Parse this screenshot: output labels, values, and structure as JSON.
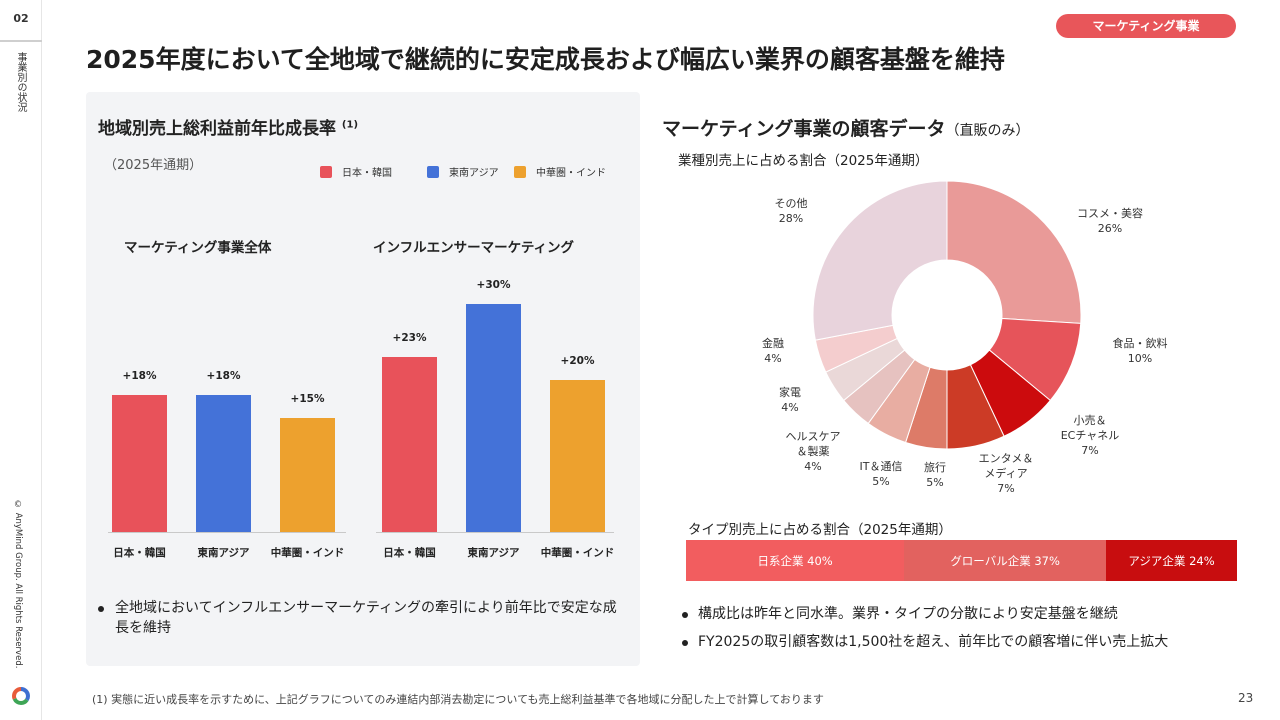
{
  "rail": {
    "section_number": "02",
    "section_label": "事業別の状況",
    "copyright": "© AnyMind Group. All Rights Reserved."
  },
  "tag": "マーケティング事業",
  "title": "2025年度において全地域で継続的に安定成長および幅広い業界の顧客基盤を維持",
  "left_panel": {
    "title": "地域別売上総利益前年比成長率",
    "title_note": "(1)",
    "period": "（2025年通期）",
    "legend": [
      {
        "label": "日本・韓国",
        "color": "#e8525a"
      },
      {
        "label": "東南アジア",
        "color": "#4472d8"
      },
      {
        "label": "中華圏・インド",
        "color": "#eda12e"
      }
    ],
    "bullet": "全地域においてインフルエンサーマーケティングの牽引により前年比で安定な成長を維持"
  },
  "chart_data": [
    {
      "type": "bar",
      "title": "マーケティング事業全体",
      "categories": [
        "日本・韓国",
        "東南アジア",
        "中華圏・インド"
      ],
      "values": [
        18,
        18,
        15
      ],
      "labels": [
        "+18%",
        "+18%",
        "+15%"
      ],
      "colors": [
        "#e8525a",
        "#4472d8",
        "#eda12e"
      ],
      "ylabel": "",
      "xlabel": "",
      "ylim": [
        0,
        33
      ]
    },
    {
      "type": "bar",
      "title": "インフルエンサーマーケティング",
      "categories": [
        "日本・韓国",
        "東南アジア",
        "中華圏・インド"
      ],
      "values": [
        23,
        30,
        20
      ],
      "labels": [
        "+23%",
        "+30%",
        "+20%"
      ],
      "colors": [
        "#e8525a",
        "#4472d8",
        "#eda12e"
      ],
      "ylabel": "",
      "xlabel": "",
      "ylim": [
        0,
        33
      ]
    },
    {
      "type": "pie",
      "title": "業種別売上に占める割合（2025年通期）",
      "categories": [
        "コスメ・美容",
        "食品・飲料",
        "小売＆ECチャネル",
        "エンタメ＆メディア",
        "旅行",
        "IT＆通信",
        "ヘルスケア＆製薬",
        "家電",
        "金融",
        "その他"
      ],
      "values": [
        26,
        10,
        7,
        7,
        5,
        5,
        4,
        4,
        4,
        28
      ],
      "colors": [
        "#e99a98",
        "#e6545a",
        "#cc0b0d",
        "#cc3b26",
        "#dd7b68",
        "#e8ada2",
        "#e6c2c0",
        "#ead8d8",
        "#f4cdce",
        "#e8d3dc"
      ]
    },
    {
      "type": "bar",
      "title": "タイプ別売上に占める割合（2025年通期）",
      "categories": [
        "日系企業",
        "グローバル企業",
        "アジア企業"
      ],
      "values": [
        40,
        37,
        24
      ],
      "colors": [
        "#f25d5f",
        "#e2625f",
        "#c80d0f"
      ]
    }
  ],
  "right": {
    "title": "マーケティング事業の顧客データ",
    "title_note": "（直販のみ）",
    "pie_labels": [
      {
        "line1": "コスメ・美容",
        "line2": "26%"
      },
      {
        "line1": "食品・飲料",
        "line2": "10%"
      },
      {
        "line1": "小売＆",
        "line2": "ECチャネル",
        "line3": "7%"
      },
      {
        "line1": "エンタメ＆",
        "line2": "メディア",
        "line3": "7%"
      },
      {
        "line1": "旅行",
        "line2": "5%"
      },
      {
        "line1": "IT＆通信",
        "line2": "5%"
      },
      {
        "line1": "ヘルスケア",
        "line2": "＆製薬",
        "line3": "4%"
      },
      {
        "line1": "家電",
        "line2": "4%"
      },
      {
        "line1": "金融",
        "line2": "4%"
      },
      {
        "line1": "その他",
        "line2": "28%"
      }
    ],
    "stack_labels": [
      "日系企業 40%",
      "グローバル企業 37%",
      "アジア企業 24%"
    ],
    "bullets": [
      "構成比は昨年と同水準。業界・タイプの分散により安定基盤を継続",
      "FY2025の取引顧客数は1,500社を超え、前年比での顧客増に伴い売上拡大"
    ]
  },
  "footnote": "(1) 実態に近い成長率を示すために、上記グラフについてのみ連結内部消去勘定についても売上総利益基準で各地域に分配した上で計算しております",
  "page_number": "23"
}
